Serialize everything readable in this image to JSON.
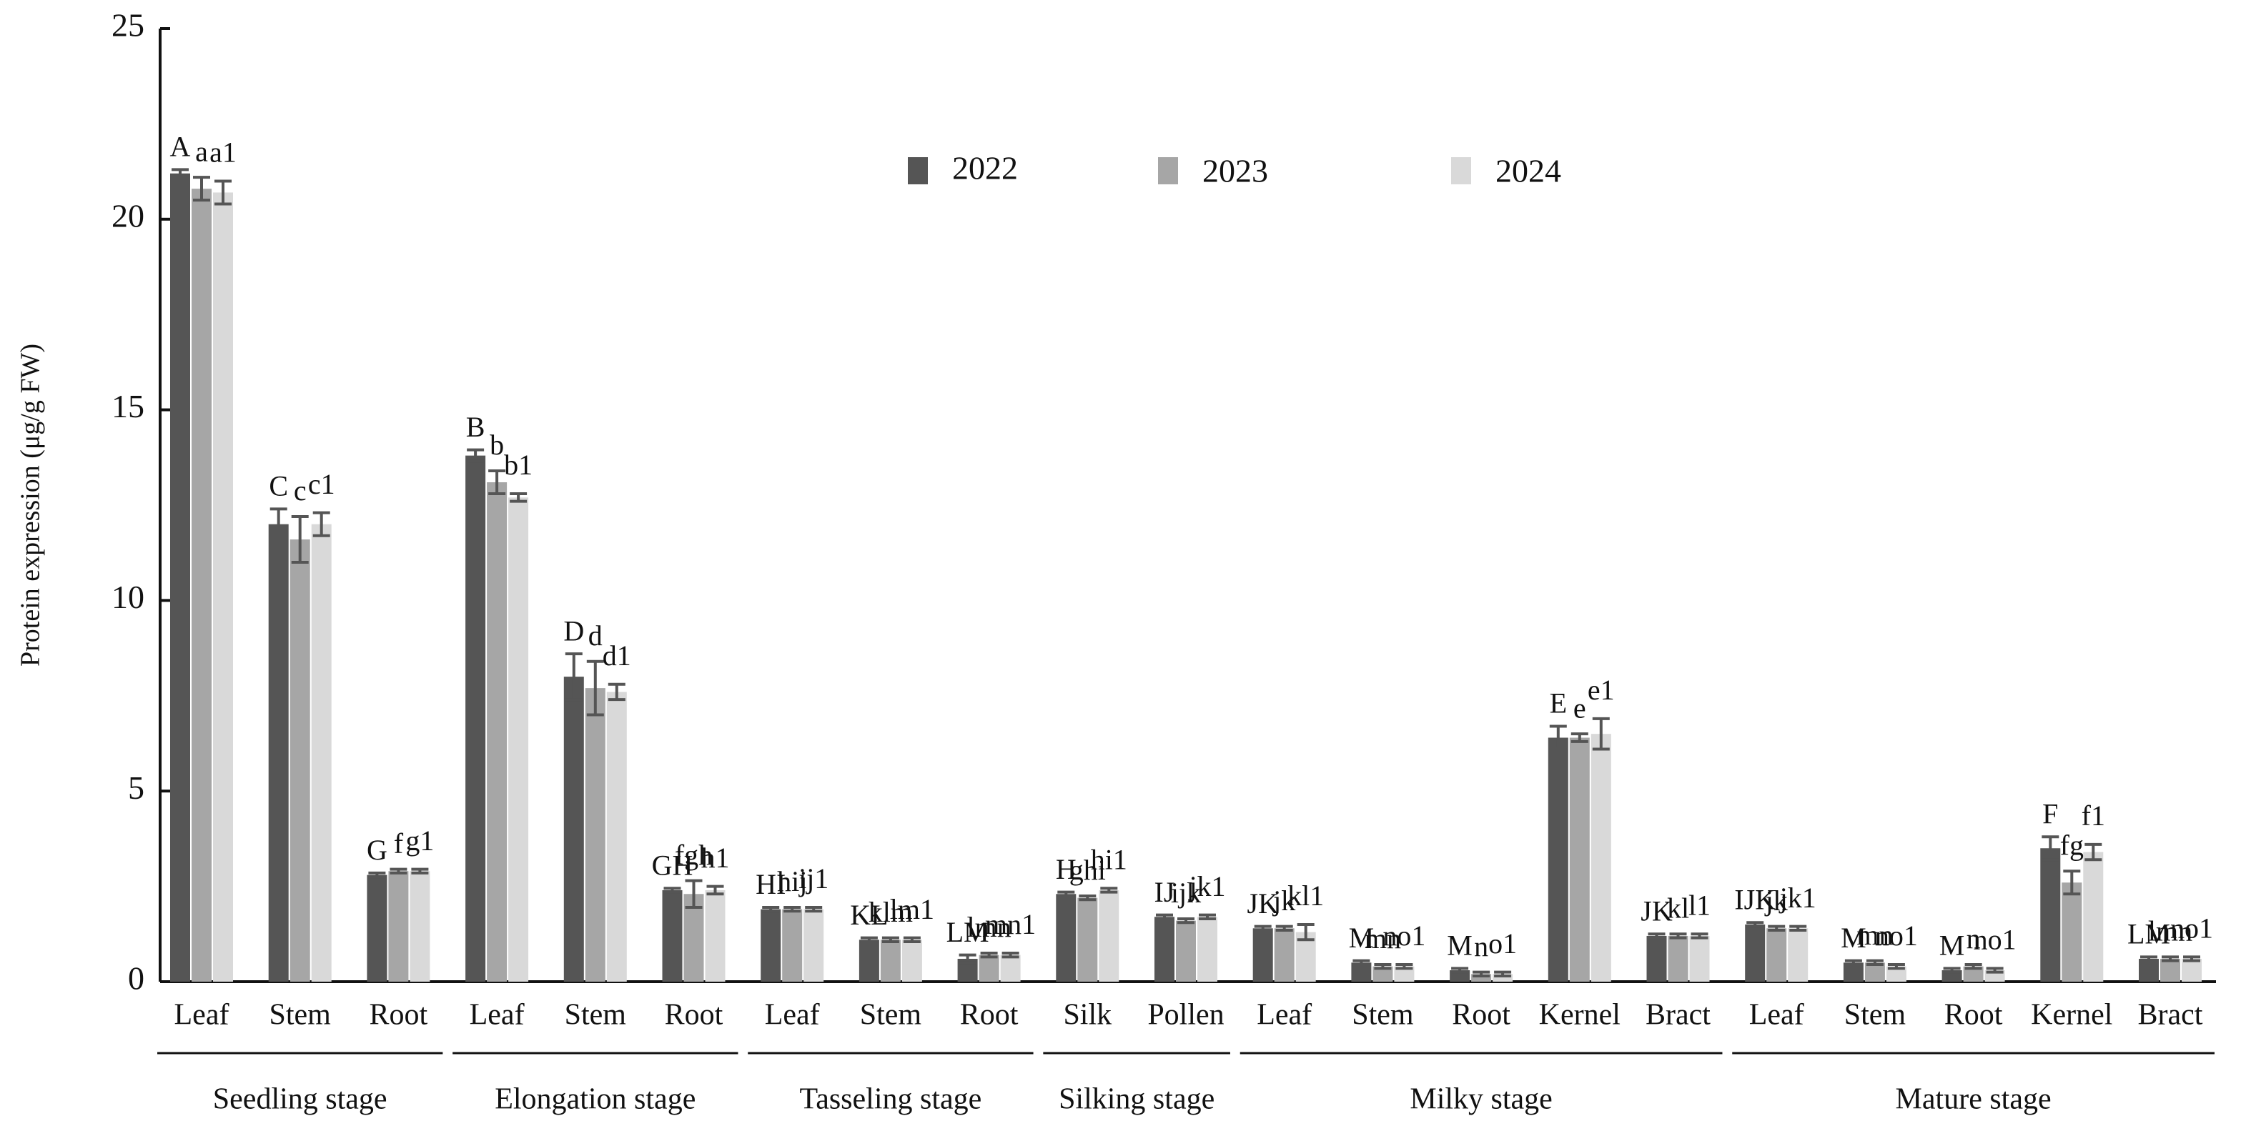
{
  "chart_data": {
    "type": "bar",
    "y_label": "Protein expression (μg/g FW)",
    "ylim": [
      0,
      25
    ],
    "yticks": [
      0,
      5,
      10,
      15,
      20,
      25
    ],
    "grid": false,
    "legend": "top",
    "stages": [
      {
        "name": "Seedling stage",
        "categories": [
          "Leaf",
          "Stem",
          "Root"
        ]
      },
      {
        "name": "Elongation stage",
        "categories": [
          "Leaf",
          "Stem",
          "Root"
        ]
      },
      {
        "name": "Tasseling stage",
        "categories": [
          "Leaf",
          "Stem",
          "Root"
        ]
      },
      {
        "name": "Silking stage",
        "categories": [
          "Silk",
          "Pollen"
        ]
      },
      {
        "name": "Milky stage",
        "categories": [
          "Leaf",
          "Stem",
          "Root",
          "Kernel",
          "Bract"
        ]
      },
      {
        "name": "Mature stage",
        "categories": [
          "Leaf",
          "Stem",
          "Root",
          "Kernel",
          "Bract"
        ]
      }
    ],
    "series": [
      {
        "name": "2022",
        "color": "#555555",
        "values": [
          21.2,
          12.0,
          2.8,
          13.8,
          8.0,
          2.4,
          1.9,
          1.1,
          0.6,
          2.3,
          1.7,
          1.4,
          0.5,
          0.3,
          6.4,
          1.2,
          1.5,
          0.5,
          0.3,
          3.5,
          0.6
        ],
        "errors": [
          0.1,
          0.4,
          0.05,
          0.15,
          0.6,
          0.05,
          0.05,
          0.05,
          0.1,
          0.05,
          0.05,
          0.05,
          0.05,
          0.05,
          0.3,
          0.05,
          0.05,
          0.05,
          0.05,
          0.3,
          0.05
        ],
        "letters": [
          "A",
          "C",
          "G",
          "B",
          "D",
          "GH",
          "HI",
          "KL",
          "LM",
          "H",
          "IJ",
          "JK",
          "M",
          "M",
          "E",
          "JK",
          "IJK",
          "M",
          "M",
          "F",
          "LM"
        ]
      },
      {
        "name": "2023",
        "color": "#a6a6a6",
        "values": [
          20.8,
          11.6,
          2.9,
          13.1,
          7.7,
          2.3,
          1.9,
          1.1,
          0.7,
          2.2,
          1.6,
          1.4,
          0.4,
          0.2,
          6.4,
          1.2,
          1.4,
          0.5,
          0.4,
          2.6,
          0.6
        ],
        "errors": [
          0.3,
          0.6,
          0.05,
          0.3,
          0.7,
          0.35,
          0.05,
          0.05,
          0.05,
          0.05,
          0.05,
          0.05,
          0.05,
          0.05,
          0.1,
          0.05,
          0.05,
          0.05,
          0.05,
          0.3,
          0.05
        ],
        "letters": [
          "a",
          "c",
          "f",
          "b",
          "d",
          "fgh",
          "hij",
          "klm",
          "lmn",
          "ghi",
          "ijk",
          "jk",
          "mn",
          "n",
          "e",
          "kl",
          "jk",
          "mn",
          "n",
          "fg",
          "lmn"
        ]
      },
      {
        "name": "2024",
        "color": "#d9d9d9",
        "values": [
          20.7,
          12.0,
          2.9,
          12.7,
          7.6,
          2.4,
          1.9,
          1.1,
          0.7,
          2.4,
          1.7,
          1.3,
          0.4,
          0.2,
          6.5,
          1.2,
          1.4,
          0.4,
          0.3,
          3.4,
          0.6
        ],
        "errors": [
          0.3,
          0.3,
          0.05,
          0.1,
          0.2,
          0.1,
          0.05,
          0.05,
          0.05,
          0.05,
          0.05,
          0.2,
          0.05,
          0.05,
          0.4,
          0.05,
          0.05,
          0.05,
          0.05,
          0.2,
          0.05
        ],
        "letters": [
          "a1",
          "c1",
          "g1",
          "b1",
          "d1",
          "h1",
          "ij1",
          "lm1",
          "mn1",
          "hi1",
          "jk1",
          "kl1",
          "no1",
          "o1",
          "e1",
          "l1",
          "jk1",
          "no1",
          "no1",
          "f1",
          "no1"
        ]
      }
    ]
  }
}
